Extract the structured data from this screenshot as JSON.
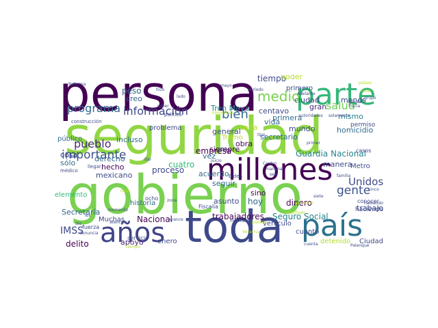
{
  "palette": {
    "dark_purple": "#440154",
    "purple": "#482878",
    "indigo": "#3e4989",
    "blue": "#31688e",
    "teal": "#26828e",
    "green_teal": "#1f9e89",
    "green": "#35b779",
    "lime": "#6ece58",
    "light_green": "#90d743",
    "yellow": "#b5de2b"
  },
  "words": [
    {
      "text": "seguridad",
      "weight": 100,
      "color": "#90d743"
    },
    {
      "text": "gobierno",
      "weight": 96,
      "color": "#7ad151"
    },
    {
      "text": "persona",
      "weight": 80,
      "color": "#440154"
    },
    {
      "text": "toda",
      "weight": 78,
      "color": "#3e4989"
    },
    {
      "text": "millones",
      "weight": 60,
      "color": "#440154"
    },
    {
      "text": "parte",
      "weight": 58,
      "color": "#35b779"
    },
    {
      "text": "país",
      "weight": 56,
      "color": "#2c728e"
    },
    {
      "text": "años",
      "weight": 50,
      "color": "#414487"
    },
    {
      "text": "medio",
      "weight": 24,
      "color": "#7ad151"
    },
    {
      "text": "bien",
      "weight": 22,
      "color": "#31688e"
    },
    {
      "text": "gente",
      "weight": 20,
      "color": "#3b528b"
    },
    {
      "text": "programa",
      "weight": 18,
      "color": "#31688e"
    },
    {
      "text": "información",
      "weight": 18,
      "color": "#3e4989"
    },
    {
      "text": "importante",
      "weight": 18,
      "color": "#3b528b"
    },
    {
      "text": "pueblo",
      "weight": 18,
      "color": "#482878"
    },
    {
      "text": "salud",
      "weight": 17,
      "color": "#6ece58"
    },
    {
      "text": "Unidos",
      "weight": 16,
      "color": "#3e4989"
    },
    {
      "text": "peso",
      "weight": 12,
      "color": "#31688e"
    },
    {
      "text": "creo",
      "weight": 12,
      "color": "#31688e"
    },
    {
      "text": "tiempo",
      "weight": 12,
      "color": "#3e4989"
    },
    {
      "text": "poder",
      "weight": 11,
      "color": "#b5de2b"
    },
    {
      "text": "primero",
      "weight": 11,
      "color": "#3e4989"
    },
    {
      "text": "menos",
      "weight": 11,
      "color": "#3e4989"
    },
    {
      "text": "mismo",
      "weight": 11,
      "color": "#26828e"
    },
    {
      "text": "Tren Maya",
      "weight": 11,
      "color": "#26828e"
    },
    {
      "text": "siempre",
      "weight": 11,
      "color": "#440154"
    },
    {
      "text": "Guardia Nacional",
      "weight": 12,
      "color": "#26828e"
    },
    {
      "text": "ciudad",
      "weight": 11,
      "color": "#414487"
    },
    {
      "text": "centavo",
      "weight": 11,
      "color": "#3e4989"
    },
    {
      "text": "primera",
      "weight": 11,
      "color": "#31688e"
    },
    {
      "text": "gran",
      "weight": 11,
      "color": "#482878"
    },
    {
      "text": "vida",
      "weight": 11,
      "color": "#31688e"
    },
    {
      "text": "mundo",
      "weight": 11,
      "color": "#3e4989"
    },
    {
      "text": "homicidio",
      "weight": 11,
      "color": "#31688e"
    },
    {
      "text": "cada",
      "weight": 11,
      "color": "#b5de2b"
    },
    {
      "text": "empresa",
      "weight": 12,
      "color": "#440154"
    },
    {
      "text": "obra",
      "weight": 11,
      "color": "#440154"
    },
    {
      "text": "secretario",
      "weight": 11,
      "color": "#31688e"
    },
    {
      "text": "general",
      "weight": 11,
      "color": "#3e4989"
    },
    {
      "text": "seguir",
      "weight": 11,
      "color": "#31688e"
    },
    {
      "text": "vez",
      "weight": 11,
      "color": "#31688e"
    },
    {
      "text": "cuatro",
      "weight": 12,
      "color": "#35b779"
    },
    {
      "text": "proceso",
      "weight": 12,
      "color": "#3e4989"
    },
    {
      "text": "derecho",
      "weight": 11,
      "color": "#31688e"
    },
    {
      "text": "hecho",
      "weight": 11,
      "color": "#440154"
    },
    {
      "text": "cosa",
      "weight": 11,
      "color": "#3e4989"
    },
    {
      "text": "sólo",
      "weight": 11,
      "color": "#31688e"
    },
    {
      "text": "incluso",
      "weight": 11,
      "color": "#31688e"
    },
    {
      "text": "mexicano",
      "weight": 11,
      "color": "#3e4989"
    },
    {
      "text": "público",
      "weight": 10,
      "color": "#31688e"
    },
    {
      "text": "problema",
      "weight": 10,
      "color": "#3e4989"
    },
    {
      "text": "dinero",
      "weight": 12,
      "color": "#440154"
    },
    {
      "text": "hoy",
      "weight": 12,
      "color": "#31688e"
    },
    {
      "text": "sino",
      "weight": 11,
      "color": "#440154"
    },
    {
      "text": "manera",
      "weight": 11,
      "color": "#3e4989"
    },
    {
      "text": "Metro",
      "weight": 10,
      "color": "#3e4989"
    },
    {
      "text": "asunto",
      "weight": 11,
      "color": "#3e4989"
    },
    {
      "text": "trabajadores",
      "weight": 12,
      "color": "#440154"
    },
    {
      "text": "Seguro Social",
      "weight": 12,
      "color": "#26828e"
    },
    {
      "text": "Nacional",
      "weight": 12,
      "color": "#440154"
    },
    {
      "text": "IMSS",
      "weight": 14,
      "color": "#3e4989"
    },
    {
      "text": "delito",
      "weight": 12,
      "color": "#440154"
    },
    {
      "text": "apoyo",
      "weight": 11,
      "color": "#482878"
    },
    {
      "text": "enero",
      "weight": 10,
      "color": "#3e4989"
    },
    {
      "text": "Secretaría",
      "weight": 11,
      "color": "#31688e"
    },
    {
      "text": "Muchas",
      "weight": 10,
      "color": "#3e4989"
    },
    {
      "text": "elemento",
      "weight": 10,
      "color": "#35b779"
    },
    {
      "text": "historia",
      "weight": 10,
      "color": "#31688e"
    },
    {
      "text": "ir",
      "weight": 11,
      "color": "#6ece58"
    },
    {
      "text": "acuerdo",
      "weight": 11,
      "color": "#31688e"
    },
    {
      "text": "vehículo",
      "weight": 10,
      "color": "#3e4989"
    },
    {
      "text": "cuanto",
      "weight": 10,
      "color": "#3e4989"
    },
    {
      "text": "detenido",
      "weight": 10,
      "color": "#b5de2b"
    },
    {
      "text": "Ciudad",
      "weight": 10,
      "color": "#3e4989"
    },
    {
      "text": "trabajo",
      "weight": 11,
      "color": "#3e4989"
    },
    {
      "text": "haciendo",
      "weight": 9,
      "color": "#3e4989"
    },
    {
      "text": "permiso",
      "weight": 9,
      "color": "#3e4989"
    },
    {
      "text": "Tramo",
      "weight": 10,
      "color": "#b5de2b"
    },
    {
      "text": "servicio",
      "weight": 8,
      "color": "#3e4989"
    },
    {
      "text": "fuerza",
      "weight": 8,
      "color": "#3e4989"
    },
    {
      "text": "ocho",
      "weight": 8,
      "color": "#3e4989"
    },
    {
      "text": "conocer",
      "weight": 8,
      "color": "#3e4989"
    },
    {
      "text": "casos",
      "weight": 8,
      "color": "#3e4989"
    },
    {
      "text": "Fiscalía",
      "weight": 8,
      "color": "#3e4989"
    },
    {
      "text": "política",
      "weight": 7,
      "color": "#3e4989"
    },
    {
      "text": "construcción",
      "weight": 7,
      "color": "#3e4989"
    },
    {
      "text": "Biden",
      "weight": 7,
      "color": "#3e4989"
    },
    {
      "text": "médico",
      "weight": 7,
      "color": "#3e4989"
    },
    {
      "text": "llegar",
      "weight": 7,
      "color": "#3e4989"
    },
    {
      "text": "Reforma",
      "weight": 6,
      "color": "#3e4989"
    },
    {
      "text": "saber",
      "weight": 6,
      "color": "#3e4989"
    },
    {
      "text": "hizo",
      "weight": 6,
      "color": "#3e4989"
    },
    {
      "text": "lado",
      "weight": 6,
      "color": "#3e4989"
    },
    {
      "text": "período",
      "weight": 6,
      "color": "#3e4989"
    },
    {
      "text": "mayo",
      "weight": 6,
      "color": "#3e4989"
    },
    {
      "text": "Adelante",
      "weight": 6,
      "color": "#3e4989"
    },
    {
      "text": "países",
      "weight": 6,
      "color": "#b5de2b"
    },
    {
      "text": "total",
      "weight": 6,
      "color": "#b5de2b"
    },
    {
      "text": "grupo",
      "weight": 6,
      "color": "#3e4989"
    },
    {
      "text": "grande",
      "weight": 6,
      "color": "#3e4989"
    },
    {
      "text": "hacia",
      "weight": 6,
      "color": "#3e4989"
    },
    {
      "text": "autoridades",
      "weight": 6,
      "color": "#3e4989"
    },
    {
      "text": "solamente",
      "weight": 6,
      "color": "#3e4989"
    },
    {
      "text": "kilómetros",
      "weight": 6,
      "color": "#b5de2b"
    },
    {
      "text": "tipo",
      "weight": 6,
      "color": "#3e4989"
    },
    {
      "text": "primer",
      "weight": 6,
      "color": "#3e4989"
    },
    {
      "text": "Plan",
      "weight": 6,
      "color": "#3e4989"
    },
    {
      "text": "juicio",
      "weight": 6,
      "color": "#3e4989"
    },
    {
      "text": "Centro",
      "weight": 6,
      "color": "#3e4989"
    },
    {
      "text": "mañana",
      "weight": 6,
      "color": "#3e4989"
    },
    {
      "text": "seis",
      "weight": 6,
      "color": "#3e4989"
    },
    {
      "text": "familia",
      "weight": 6,
      "color": "#3e4989"
    },
    {
      "text": "cinco",
      "weight": 6,
      "color": "#3e4989"
    },
    {
      "text": "siete",
      "weight": 6,
      "color": "#3e4989"
    },
    {
      "text": "cabo",
      "weight": 6,
      "color": "#3e4989"
    },
    {
      "text": "dijo",
      "weight": 6,
      "color": "#3e4989"
    },
    {
      "text": "baja",
      "weight": 6,
      "color": "#b5de2b"
    },
    {
      "text": "zona",
      "weight": 6,
      "color": "#3e4989"
    },
    {
      "text": "momento",
      "weight": 6,
      "color": "#3e4989"
    },
    {
      "text": "atención",
      "weight": 6,
      "color": "#3e4989"
    },
    {
      "text": "avance",
      "weight": 6,
      "color": "#3e4989"
    },
    {
      "text": "ibs",
      "weight": 6,
      "color": "#3e4989"
    },
    {
      "text": "dio",
      "weight": 6,
      "color": "#3e4989"
    },
    {
      "text": "denuncia",
      "weight": 6,
      "color": "#3e4989"
    },
    {
      "text": "tiempo",
      "weight": 6,
      "color": "#b5de2b"
    },
    {
      "text": "cuenta",
      "weight": 6,
      "color": "#3e4989"
    },
    {
      "text": "Palenque",
      "weight": 6,
      "color": "#3e4989"
    },
    {
      "text": "mexicana",
      "weight": 6,
      "color": "#3e4989"
    },
    {
      "text": "resultado",
      "weight": 6,
      "color": "#b5de2b"
    },
    {
      "text": "personal",
      "weight": 6,
      "color": "#b5de2b"
    },
    {
      "text": "Veracruz",
      "weight": 6,
      "color": "#b5de2b"
    },
    {
      "text": "pública",
      "weight": 6,
      "color": "#b5de2b"
    },
    {
      "text": "hablando",
      "weight": 6,
      "color": "#3e4989"
    }
  ]
}
